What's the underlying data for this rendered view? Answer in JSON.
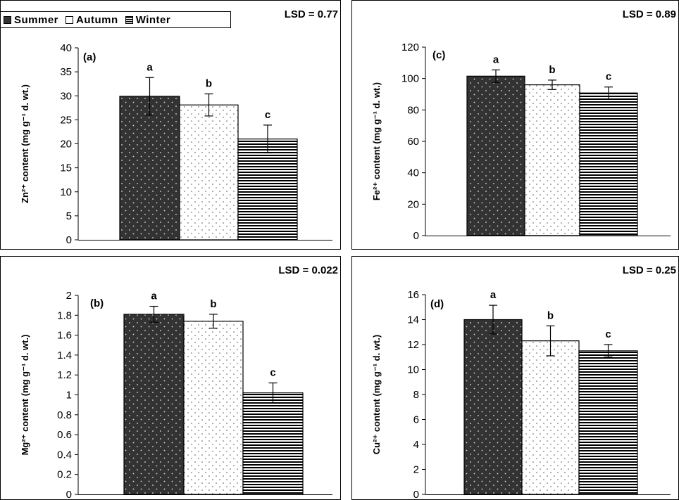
{
  "legend": {
    "items": [
      {
        "label": "Summer"
      },
      {
        "label": "Autumn"
      },
      {
        "label": "Winter"
      }
    ]
  },
  "colors": {
    "summer_fill": "#333333",
    "autumn_fill": "#ffffff",
    "winter_stripe": "#000000",
    "frame": "#000000"
  },
  "chart_data": [
    {
      "type": "bar",
      "panel_label": "(a)",
      "lsd": "LSD = 0.77",
      "ylabel": "Zn²⁺ content (mg g⁻¹ d. wt.)",
      "categories": [
        "Summer",
        "Autumn",
        "Winter"
      ],
      "values": [
        29.9,
        28.1,
        21.0
      ],
      "errors": [
        3.9,
        2.3,
        2.9
      ],
      "letters": [
        "a",
        "b",
        "c"
      ],
      "ylim": [
        0,
        40
      ],
      "yticks": [
        0,
        5,
        10,
        15,
        20,
        25,
        30,
        35,
        40
      ],
      "ytick_labels": [
        "0",
        "5",
        "10",
        "15",
        "20",
        "25",
        "30",
        "35",
        "40"
      ],
      "grid": false
    },
    {
      "type": "bar",
      "panel_label": "(c)",
      "lsd": "LSD = 0.89",
      "ylabel": "Fe²⁺ content (mg g⁻¹ d. wt.)",
      "categories": [
        "Summer",
        "Autumn",
        "Winter"
      ],
      "values": [
        101.5,
        96.0,
        90.8
      ],
      "errors": [
        4.0,
        3.0,
        3.8
      ],
      "letters": [
        "a",
        "b",
        "c"
      ],
      "ylim": [
        0,
        120
      ],
      "yticks": [
        0,
        20,
        40,
        60,
        80,
        100,
        120
      ],
      "ytick_labels": [
        "0",
        "20",
        "40",
        "60",
        "80",
        "100",
        "120"
      ],
      "grid": false
    },
    {
      "type": "bar",
      "panel_label": "(b)",
      "lsd": "LSD = 0.022",
      "ylabel": "Mg²⁺ content (mg g⁻¹ d. wt.)",
      "categories": [
        "Summer",
        "Autumn",
        "Winter"
      ],
      "values": [
        1.81,
        1.74,
        1.02
      ],
      "errors": [
        0.08,
        0.07,
        0.1
      ],
      "letters": [
        "a",
        "b",
        "c"
      ],
      "ylim": [
        0,
        2
      ],
      "yticks": [
        0,
        0.2,
        0.4,
        0.6,
        0.8,
        1,
        1.2,
        1.4,
        1.6,
        1.8,
        2
      ],
      "ytick_labels": [
        "0",
        "0.2",
        "0.4",
        "0.6",
        "0.8",
        "1",
        "1.2",
        "1.4",
        "1.6",
        "1.8",
        "2"
      ],
      "grid": false
    },
    {
      "type": "bar",
      "panel_label": "(d)",
      "lsd": "LSD = 0.25",
      "ylabel": "Cu²⁺ content (mg g⁻¹ d. wt.)",
      "categories": [
        "Summer",
        "Autumn",
        "Winter"
      ],
      "values": [
        14.0,
        12.3,
        11.5
      ],
      "errors": [
        1.15,
        1.2,
        0.5
      ],
      "letters": [
        "a",
        "b",
        "c"
      ],
      "ylim": [
        0,
        16
      ],
      "yticks": [
        0,
        2,
        4,
        6,
        8,
        10,
        12,
        14,
        16
      ],
      "ytick_labels": [
        "0",
        "2",
        "4",
        "6",
        "8",
        "10",
        "12",
        "14",
        "16"
      ],
      "grid": false
    }
  ]
}
